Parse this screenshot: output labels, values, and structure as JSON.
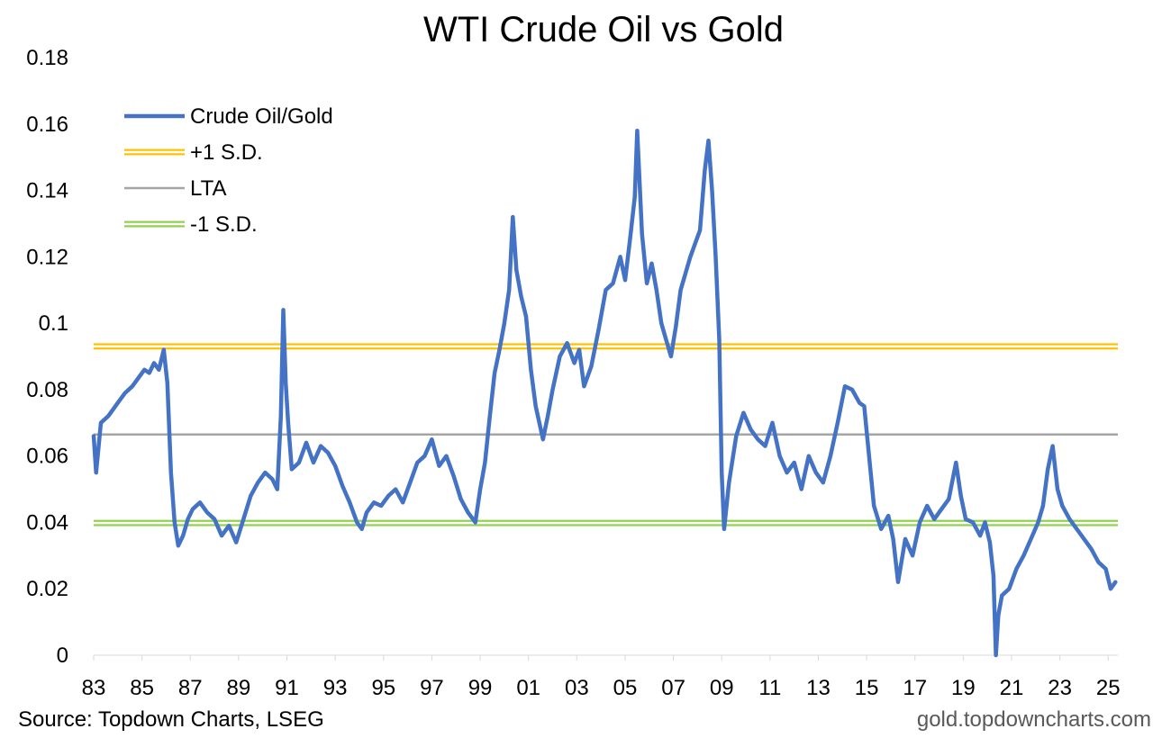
{
  "chart_data": {
    "type": "line",
    "title": "WTI Crude Oil vs Gold",
    "xlabel": "",
    "ylabel": "",
    "xlim": [
      1983.0,
      2025.4
    ],
    "ylim": [
      0,
      0.18
    ],
    "yticks": [
      "0",
      "0.02",
      "0.04",
      "0.06",
      "0.08",
      "0.1",
      "0.12",
      "0.14",
      "0.16",
      "0.18"
    ],
    "xticks": [
      {
        "year": 1983,
        "label": "83"
      },
      {
        "year": 1985,
        "label": "85"
      },
      {
        "year": 1987,
        "label": "87"
      },
      {
        "year": 1989,
        "label": "89"
      },
      {
        "year": 1991,
        "label": "91"
      },
      {
        "year": 1993,
        "label": "93"
      },
      {
        "year": 1995,
        "label": "95"
      },
      {
        "year": 1997,
        "label": "97"
      },
      {
        "year": 1999,
        "label": "99"
      },
      {
        "year": 2001,
        "label": "01"
      },
      {
        "year": 2003,
        "label": "03"
      },
      {
        "year": 2005,
        "label": "05"
      },
      {
        "year": 2007,
        "label": "07"
      },
      {
        "year": 2009,
        "label": "09"
      },
      {
        "year": 2011,
        "label": "11"
      },
      {
        "year": 2013,
        "label": "13"
      },
      {
        "year": 2015,
        "label": "15"
      },
      {
        "year": 2017,
        "label": "17"
      },
      {
        "year": 2019,
        "label": "19"
      },
      {
        "year": 2021,
        "label": "21"
      },
      {
        "year": 2023,
        "label": "23"
      },
      {
        "year": 2025,
        "label": "25"
      }
    ],
    "grid": false,
    "legend_position": "top-left",
    "series": [
      {
        "name": "Crude Oil/Gold",
        "color": "#4472C4",
        "style": "line",
        "x": [
          1983.0,
          1983.1,
          1983.3,
          1983.6,
          1984.0,
          1984.3,
          1984.6,
          1984.9,
          1985.1,
          1985.3,
          1985.5,
          1985.7,
          1985.9,
          1986.05,
          1986.2,
          1986.35,
          1986.5,
          1986.7,
          1986.9,
          1987.1,
          1987.4,
          1987.7,
          1988.0,
          1988.3,
          1988.6,
          1988.9,
          1989.2,
          1989.5,
          1989.8,
          1990.1,
          1990.4,
          1990.6,
          1990.75,
          1990.85,
          1990.95,
          1991.05,
          1991.2,
          1991.5,
          1991.8,
          1992.1,
          1992.4,
          1992.7,
          1993.0,
          1993.3,
          1993.6,
          1993.9,
          1994.1,
          1994.3,
          1994.6,
          1994.9,
          1995.2,
          1995.5,
          1995.8,
          1996.1,
          1996.4,
          1996.7,
          1997.0,
          1997.3,
          1997.6,
          1997.9,
          1998.2,
          1998.5,
          1998.8,
          1999.0,
          1999.2,
          1999.4,
          1999.6,
          1999.8,
          2000.0,
          2000.2,
          2000.35,
          2000.5,
          2000.7,
          2000.9,
          2001.1,
          2001.3,
          2001.6,
          2001.8,
          2002.0,
          2002.3,
          2002.6,
          2002.9,
          2003.1,
          2003.3,
          2003.6,
          2003.9,
          2004.2,
          2004.5,
          2004.8,
          2005.0,
          2005.2,
          2005.4,
          2005.5,
          2005.7,
          2005.9,
          2006.1,
          2006.3,
          2006.5,
          2006.7,
          2006.9,
          2007.1,
          2007.3,
          2007.5,
          2007.7,
          2007.9,
          2008.1,
          2008.3,
          2008.45,
          2008.6,
          2008.75,
          2008.9,
          2009.0,
          2009.1,
          2009.3,
          2009.6,
          2009.9,
          2010.2,
          2010.5,
          2010.8,
          2011.1,
          2011.4,
          2011.7,
          2012.0,
          2012.3,
          2012.6,
          2012.9,
          2013.2,
          2013.5,
          2013.8,
          2014.1,
          2014.4,
          2014.7,
          2014.9,
          2015.1,
          2015.3,
          2015.6,
          2015.9,
          2016.1,
          2016.3,
          2016.6,
          2016.9,
          2017.2,
          2017.5,
          2017.8,
          2018.1,
          2018.4,
          2018.7,
          2018.9,
          2019.1,
          2019.4,
          2019.7,
          2019.9,
          2020.1,
          2020.25,
          2020.35,
          2020.45,
          2020.6,
          2020.9,
          2021.2,
          2021.5,
          2021.8,
          2022.1,
          2022.3,
          2022.5,
          2022.7,
          2022.9,
          2023.1,
          2023.4,
          2023.7,
          2024.0,
          2024.3,
          2024.6,
          2024.9,
          2025.1,
          2025.3
        ],
        "values": [
          0.066,
          0.055,
          0.07,
          0.072,
          0.076,
          0.079,
          0.081,
          0.084,
          0.086,
          0.085,
          0.088,
          0.086,
          0.092,
          0.082,
          0.055,
          0.04,
          0.033,
          0.036,
          0.041,
          0.044,
          0.046,
          0.043,
          0.041,
          0.036,
          0.039,
          0.034,
          0.041,
          0.048,
          0.052,
          0.055,
          0.053,
          0.05,
          0.072,
          0.104,
          0.082,
          0.07,
          0.056,
          0.058,
          0.064,
          0.058,
          0.063,
          0.061,
          0.057,
          0.051,
          0.046,
          0.04,
          0.038,
          0.043,
          0.046,
          0.045,
          0.048,
          0.05,
          0.046,
          0.052,
          0.058,
          0.06,
          0.065,
          0.057,
          0.06,
          0.054,
          0.047,
          0.043,
          0.04,
          0.05,
          0.058,
          0.072,
          0.085,
          0.092,
          0.1,
          0.11,
          0.132,
          0.116,
          0.108,
          0.102,
          0.086,
          0.075,
          0.065,
          0.072,
          0.08,
          0.09,
          0.094,
          0.088,
          0.092,
          0.081,
          0.087,
          0.098,
          0.11,
          0.112,
          0.12,
          0.113,
          0.125,
          0.138,
          0.158,
          0.127,
          0.112,
          0.118,
          0.11,
          0.1,
          0.095,
          0.09,
          0.099,
          0.11,
          0.115,
          0.12,
          0.124,
          0.128,
          0.146,
          0.155,
          0.14,
          0.12,
          0.095,
          0.055,
          0.038,
          0.052,
          0.066,
          0.073,
          0.068,
          0.065,
          0.063,
          0.07,
          0.06,
          0.055,
          0.058,
          0.05,
          0.06,
          0.055,
          0.052,
          0.06,
          0.07,
          0.081,
          0.08,
          0.076,
          0.075,
          0.06,
          0.045,
          0.038,
          0.042,
          0.035,
          0.022,
          0.035,
          0.03,
          0.04,
          0.045,
          0.041,
          0.044,
          0.047,
          0.058,
          0.048,
          0.041,
          0.04,
          0.036,
          0.04,
          0.034,
          0.024,
          0.0,
          0.012,
          0.018,
          0.02,
          0.026,
          0.03,
          0.035,
          0.04,
          0.045,
          0.056,
          0.063,
          0.05,
          0.045,
          0.041,
          0.038,
          0.035,
          0.032,
          0.028,
          0.026,
          0.02,
          0.022
        ]
      },
      {
        "name": "+1 S.D.",
        "color": "#FFC000",
        "style": "double",
        "value": 0.093
      },
      {
        "name": "LTA",
        "color": "#A5A5A5",
        "style": "line",
        "value": 0.0665
      },
      {
        "name": "-1 S.D.",
        "color": "#92D050",
        "style": "double",
        "value": 0.0398
      }
    ]
  },
  "footer": {
    "source": "Source: Topdown Charts, LSEG",
    "website": "gold.topdowncharts.com"
  }
}
